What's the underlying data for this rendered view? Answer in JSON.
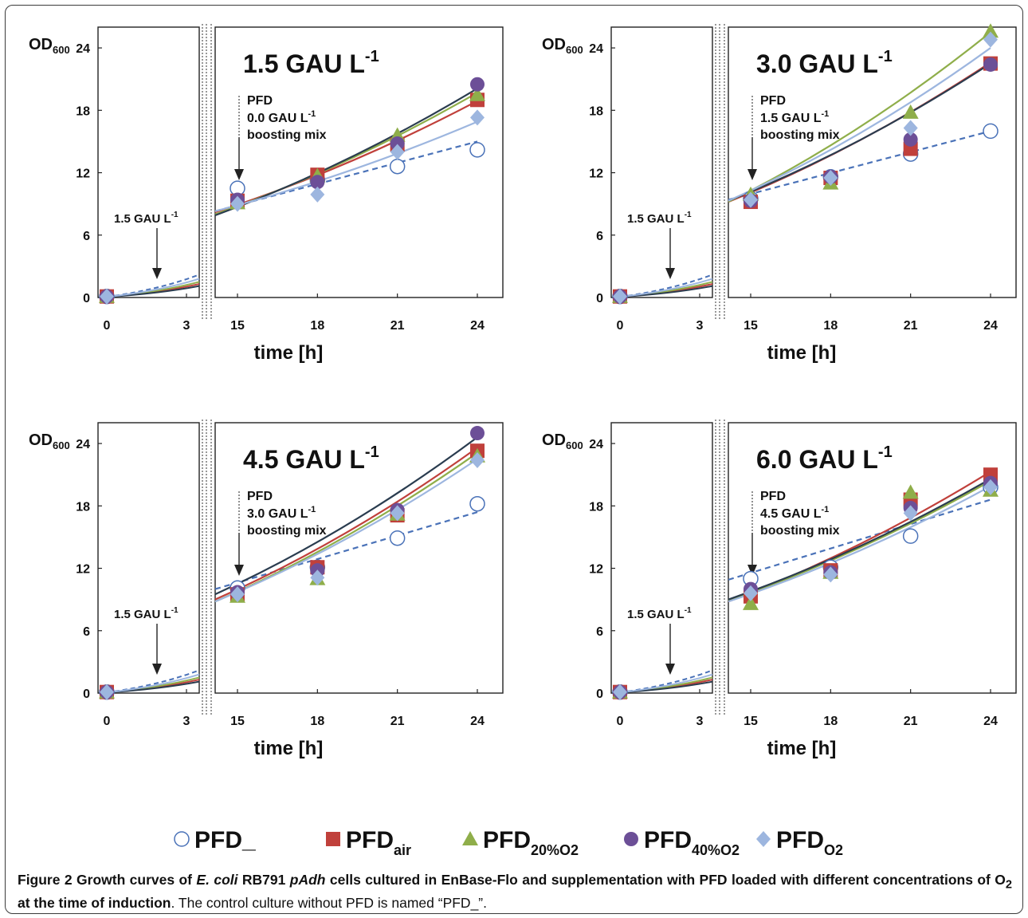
{
  "figure": {
    "y_axis_label_main": "OD",
    "y_axis_label_sub": "600",
    "x_axis_label": "time [h]",
    "annotation_pre": "PFD",
    "annotation_post": "boosting mix",
    "annotation_arrow": "1.5 GAU L"
  },
  "legend": [
    {
      "id": "none",
      "label_main": "PFD_",
      "label_sub": "",
      "marker": "circle-open",
      "color": "#4a72b8"
    },
    {
      "id": "air",
      "label_main": "PFD",
      "label_sub": "air",
      "marker": "square",
      "color": "#c0403b"
    },
    {
      "id": "o20",
      "label_main": "PFD",
      "label_sub": "20%O2",
      "marker": "triangle",
      "color": "#8fae4a"
    },
    {
      "id": "o40",
      "label_main": "PFD",
      "label_sub": "40%O2",
      "marker": "circle",
      "color": "#6c4f97"
    },
    {
      "id": "o2",
      "label_main": "PFD",
      "label_sub": "O2",
      "marker": "diamond",
      "color": "#9db6df"
    }
  ],
  "caption": {
    "label": "Figure 2",
    "bold_1": "Growth curves of ",
    "italic_1": "E. coli",
    "bold_2": " RB791 ",
    "italic_2": "pAdh",
    "bold_3": " cells cultured in EnBase-Flo and supplementation with PFD loaded with different concentrations of O",
    "bold_sub": "2",
    "bold_4": " at the time of induction",
    "rest": ". The control culture without PFD is named “PFD_”."
  },
  "chart_data": [
    {
      "type": "line",
      "title": "1.5 GAU L",
      "title_sup": "-1",
      "dose_label": "0.0 GAU L",
      "ylim": [
        0,
        26
      ],
      "yticks": [
        0,
        6,
        12,
        18,
        24
      ],
      "xticks": [
        0,
        3,
        15,
        18,
        21,
        24
      ],
      "x": [
        15,
        18,
        21,
        24
      ],
      "series": [
        {
          "id": "none",
          "values": [
            10.5,
            11.3,
            12.6,
            14.2
          ],
          "fit_start": 8.3,
          "fit_end": 15.0,
          "dashed": true
        },
        {
          "id": "air",
          "values": [
            9.3,
            11.8,
            14.7,
            19.0
          ],
          "fit_start": 8.2,
          "fit_end": 18.9
        },
        {
          "id": "o20",
          "values": [
            9.1,
            11.7,
            15.6,
            19.5
          ],
          "fit_start": 8.0,
          "fit_end": 19.7
        },
        {
          "id": "o40",
          "values": [
            9.4,
            11.1,
            14.8,
            20.5
          ],
          "fit_start": 7.9,
          "fit_end": 20.1
        },
        {
          "id": "o2",
          "values": [
            9.0,
            9.9,
            14.0,
            17.3
          ],
          "fit_start": 8.3,
          "fit_end": 16.9
        }
      ]
    },
    {
      "type": "line",
      "title": "3.0 GAU L",
      "title_sup": "-1",
      "dose_label": "1.5 GAU L",
      "ylim": [
        0,
        26
      ],
      "yticks": [
        0,
        6,
        12,
        18,
        24
      ],
      "xticks": [
        0,
        3,
        15,
        18,
        21,
        24
      ],
      "x": [
        15,
        18,
        21,
        24
      ],
      "series": [
        {
          "id": "none",
          "values": [
            9.5,
            11.6,
            13.8,
            16.0
          ],
          "fit_start": 9.4,
          "fit_end": 16.0,
          "dashed": true
        },
        {
          "id": "air",
          "values": [
            9.2,
            11.5,
            14.3,
            22.5
          ],
          "fit_start": 9.2,
          "fit_end": 22.6
        },
        {
          "id": "o20",
          "values": [
            9.9,
            11.0,
            17.8,
            25.6
          ],
          "fit_start": 9.2,
          "fit_end": 25.5
        },
        {
          "id": "o40",
          "values": [
            9.3,
            11.6,
            15.2,
            22.4
          ],
          "fit_start": 9.3,
          "fit_end": 22.5
        },
        {
          "id": "o2",
          "values": [
            9.4,
            11.5,
            16.3,
            24.8
          ],
          "fit_start": 9.3,
          "fit_end": 24.0
        }
      ]
    },
    {
      "type": "line",
      "title": "4.5 GAU L",
      "title_sup": "-1",
      "dose_label": "3.0 GAU L",
      "ylim": [
        0,
        26
      ],
      "yticks": [
        0,
        6,
        12,
        18,
        24
      ],
      "xticks": [
        0,
        3,
        15,
        18,
        21,
        24
      ],
      "x": [
        15,
        18,
        21,
        24
      ],
      "series": [
        {
          "id": "none",
          "values": [
            10.1,
            12.1,
            14.9,
            18.2
          ],
          "fit_start": 10.0,
          "fit_end": 17.4,
          "dashed": true
        },
        {
          "id": "air",
          "values": [
            9.5,
            12.1,
            17.1,
            23.3
          ],
          "fit_start": 9.0,
          "fit_end": 23.6
        },
        {
          "id": "o20",
          "values": [
            9.3,
            11.0,
            17.2,
            22.8
          ],
          "fit_start": 8.8,
          "fit_end": 23.1
        },
        {
          "id": "o40",
          "values": [
            9.7,
            11.8,
            17.6,
            25.0
          ],
          "fit_start": 9.5,
          "fit_end": 24.6
        },
        {
          "id": "o2",
          "values": [
            9.5,
            11.1,
            17.3,
            22.4
          ],
          "fit_start": 8.8,
          "fit_end": 22.5
        }
      ]
    },
    {
      "type": "line",
      "title": "6.0 GAU L",
      "title_sup": "-1",
      "dose_label": "4.5 GAU L",
      "ylim": [
        0,
        26
      ],
      "yticks": [
        0,
        6,
        12,
        18,
        24
      ],
      "xticks": [
        0,
        3,
        15,
        18,
        21,
        24
      ],
      "x": [
        15,
        18,
        21,
        24
      ],
      "series": [
        {
          "id": "none",
          "values": [
            11.0,
            12.1,
            15.1,
            19.8
          ],
          "fit_start": 10.9,
          "fit_end": 18.6,
          "dashed": true
        },
        {
          "id": "air",
          "values": [
            9.3,
            11.8,
            18.6,
            21.0
          ],
          "fit_start": 8.8,
          "fit_end": 21.3
        },
        {
          "id": "o20",
          "values": [
            8.6,
            11.6,
            19.3,
            19.5
          ],
          "fit_start": 8.9,
          "fit_end": 20.4
        },
        {
          "id": "o40",
          "values": [
            10.0,
            11.6,
            17.8,
            20.2
          ],
          "fit_start": 9.0,
          "fit_end": 20.6
        },
        {
          "id": "o2",
          "values": [
            9.6,
            11.4,
            17.3,
            19.8
          ],
          "fit_start": 8.8,
          "fit_end": 19.9
        }
      ]
    }
  ]
}
